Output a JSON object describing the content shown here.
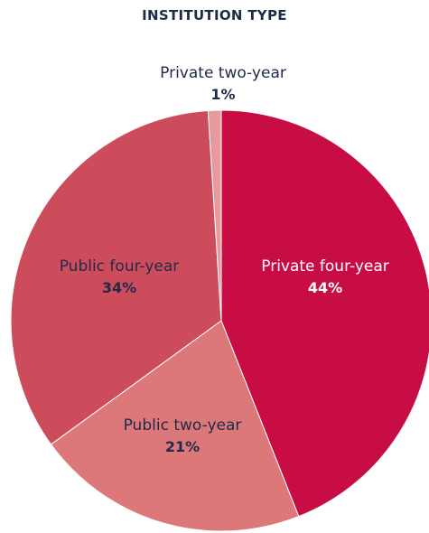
{
  "chart_data": {
    "type": "pie",
    "title": "INSTITUTION TYPE",
    "slices": [
      {
        "label": "Private four-year",
        "value": 44,
        "display": "44%",
        "color": "#c80d45",
        "label_color": "#ffffff"
      },
      {
        "label": "Public two-year",
        "value": 21,
        "display": "21%",
        "color": "#dc787a",
        "label_color": "#1f2a4a"
      },
      {
        "label": "Public four-year",
        "value": 34,
        "display": "34%",
        "color": "#cd4c5c",
        "label_color": "#1f2a4a"
      },
      {
        "label": "Private two-year",
        "value": 1,
        "display": "1%",
        "color": "#e59a9e",
        "label_color": "#1f2a4a"
      }
    ]
  }
}
